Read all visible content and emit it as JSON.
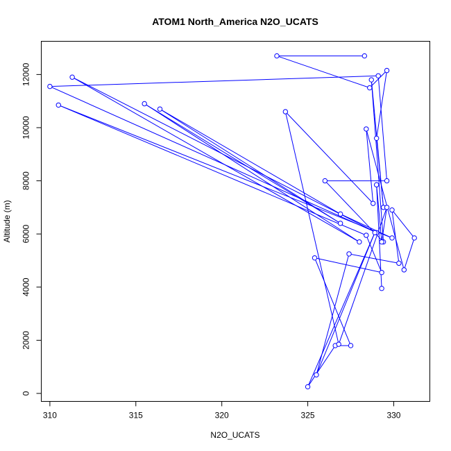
{
  "chart_data": {
    "type": "line",
    "title": "ATOM1 North_America N2O_UCATS",
    "xlabel": "N2O_UCATS",
    "ylabel": "Altitude (m)",
    "xlim": [
      309.5,
      332.1
    ],
    "ylim": [
      -300,
      13250
    ],
    "x_ticks": [
      310,
      315,
      320,
      325,
      330
    ],
    "y_ticks": [
      0,
      2000,
      4000,
      6000,
      8000,
      10000,
      12000
    ],
    "grid": false,
    "line_color": "#0000ff",
    "marker": "open-circle",
    "series": [
      {
        "x": [
          328.3,
          323.2,
          328.6,
          329.6,
          329.0,
          329.4,
          328.7,
          329.4,
          326.0,
          329.6,
          329.1,
          310.0,
          329.0,
          311.3,
          328.0,
          315.5,
          326.9,
          316.4,
          326.9,
          329.9,
          310.5,
          328.4,
          329.3,
          325.4,
          327.5,
          326.6,
          325.0,
          328.9,
          325.5,
          327.4,
          330.3,
          329.9,
          331.2,
          330.6,
          328.4,
          328.8,
          323.7,
          326.8,
          329.6,
          329.3,
          329.0,
          329.3
        ],
        "y": [
          12700,
          12700,
          11500,
          12150,
          9600,
          7000,
          11800,
          5700,
          8000,
          8000,
          11950,
          11550,
          6050,
          11900,
          5700,
          10900,
          6400,
          10700,
          6750,
          5850,
          10850,
          5950,
          4550,
          5100,
          1800,
          1800,
          250,
          6050,
          700,
          5250,
          4900,
          6900,
          5850,
          4650,
          9950,
          7150,
          10600,
          1850,
          7000,
          5700,
          7850,
          3950
        ]
      }
    ]
  }
}
